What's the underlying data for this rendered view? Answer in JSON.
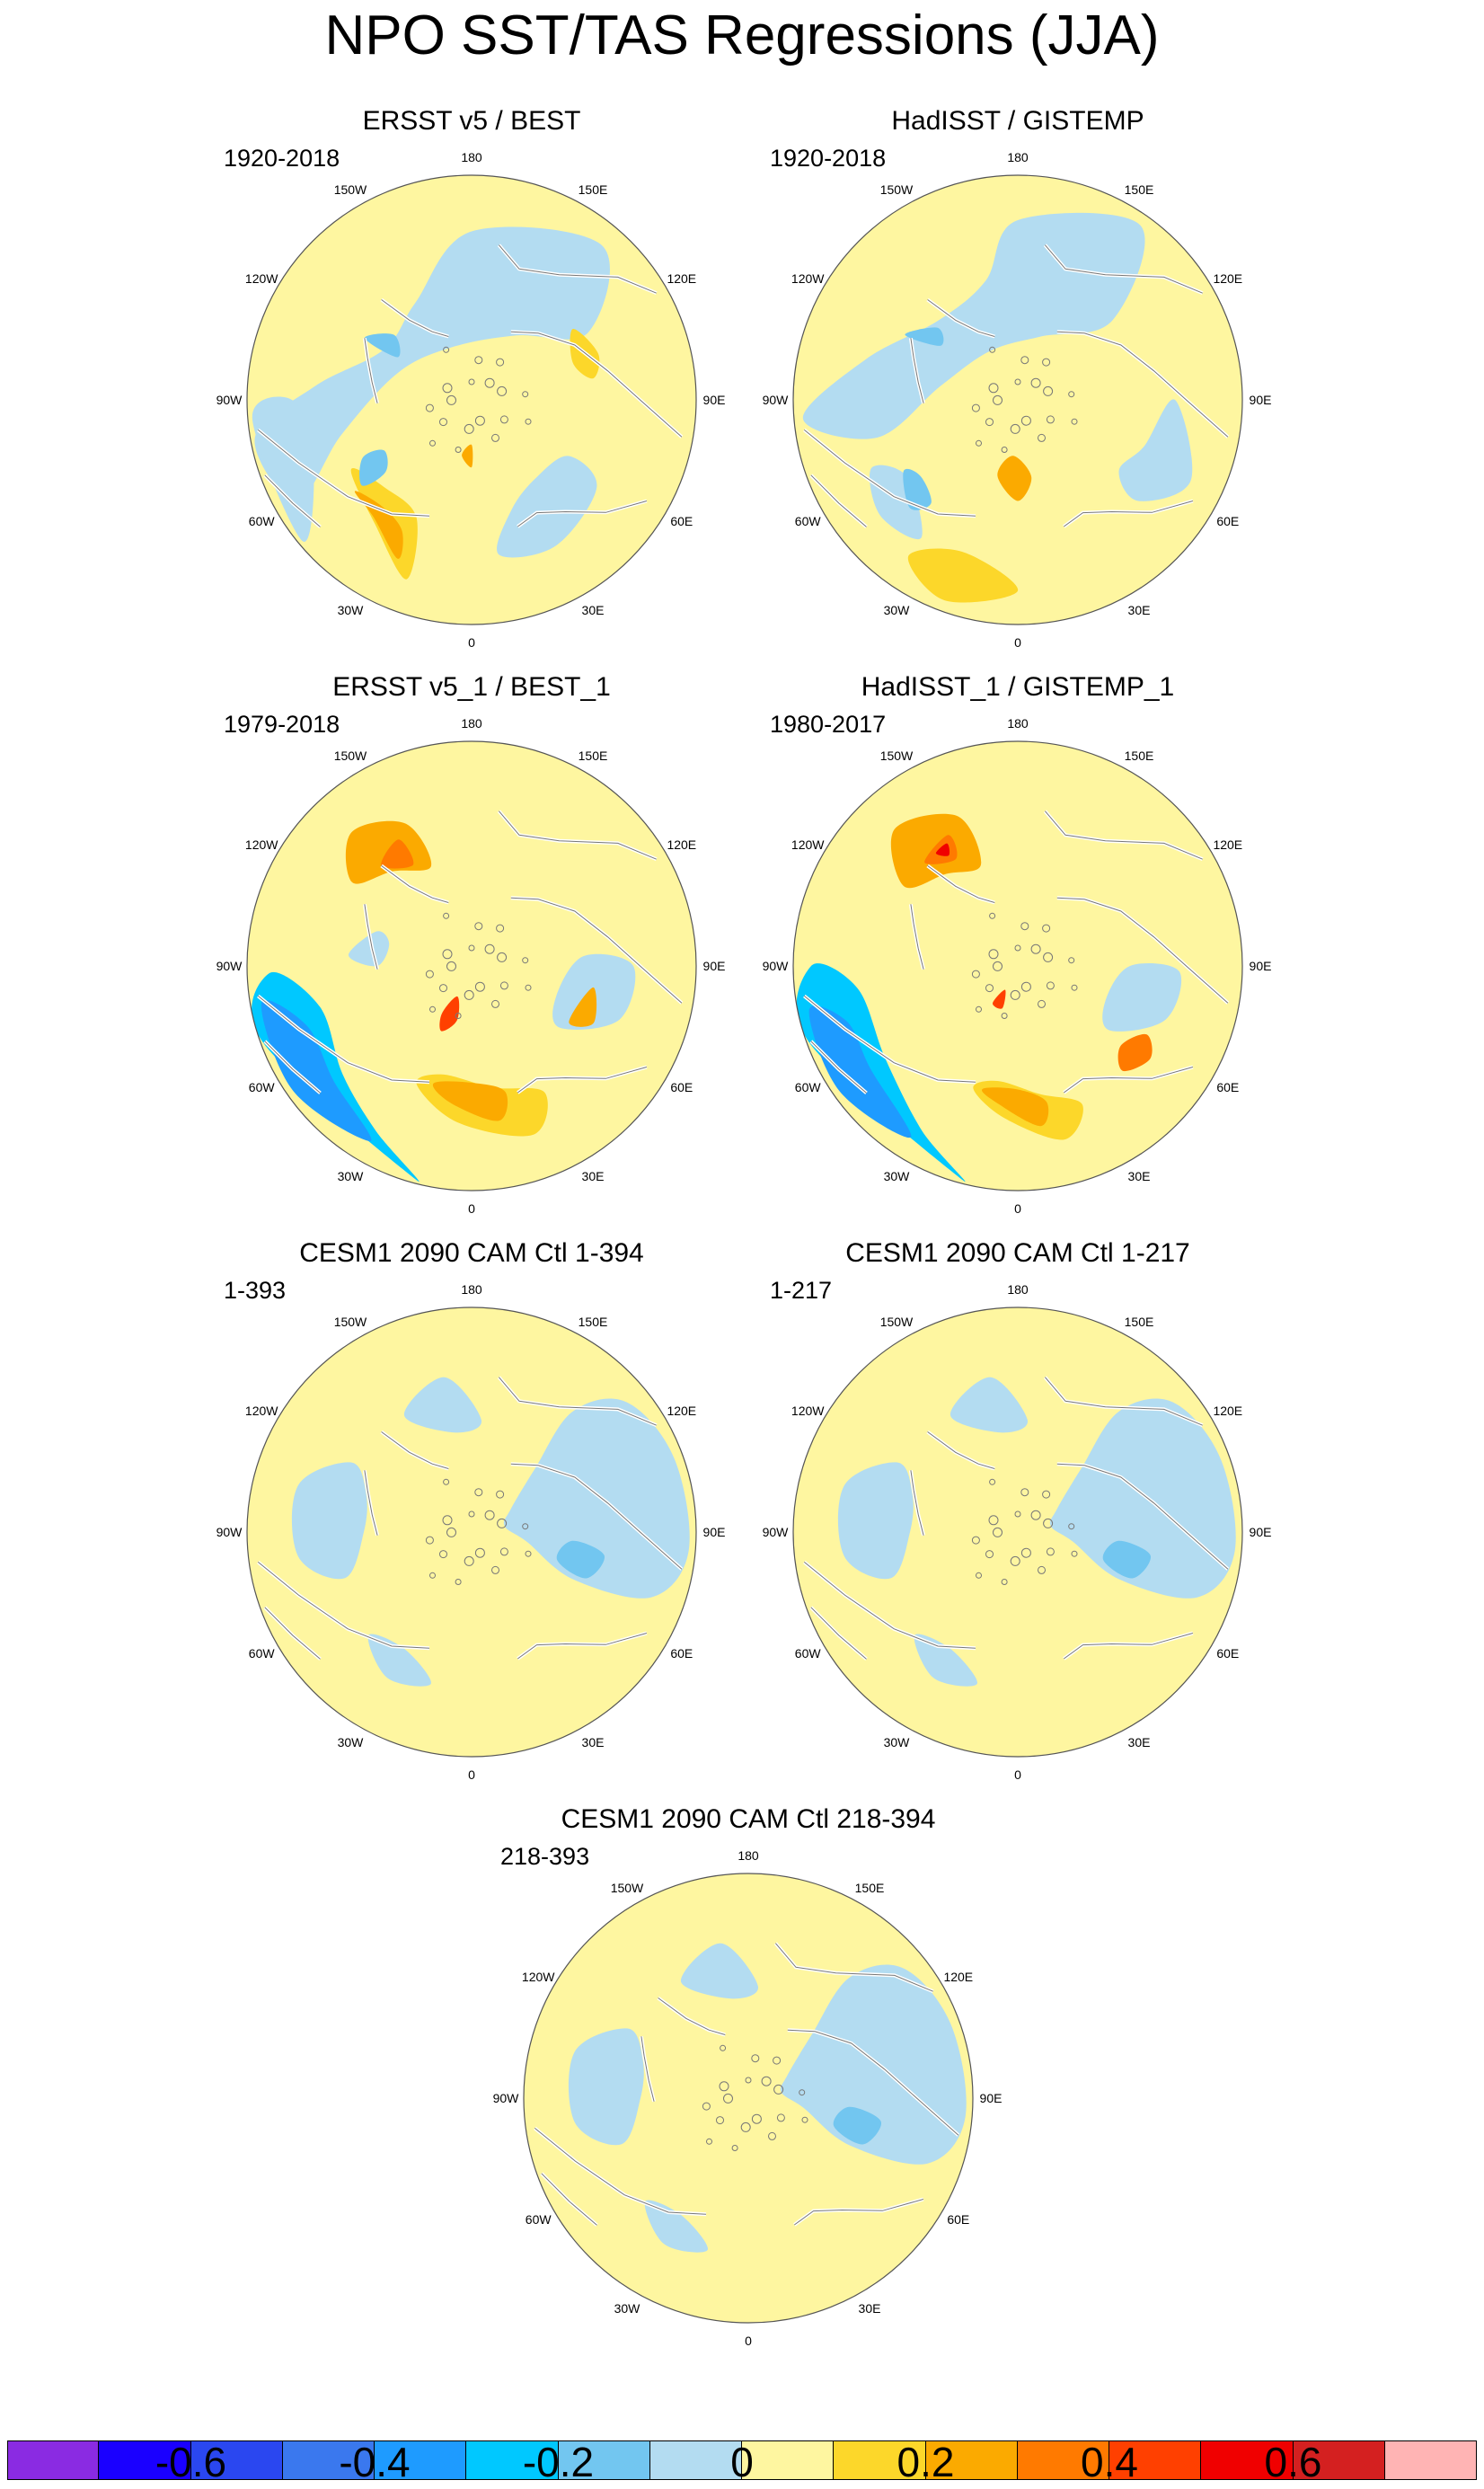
{
  "title": "NPO SST/TAS Regressions (JJA)",
  "panels": [
    {
      "title": "ERSST v5 / BEST",
      "period": "1920-2018",
      "style": "obs20"
    },
    {
      "title": "HadISST / GISTEMP",
      "period": "1920-2018",
      "style": "obs20b"
    },
    {
      "title": "ERSST v5_1 / BEST_1",
      "period": "1979-2018",
      "style": "obs79"
    },
    {
      "title": "HadISST_1 / GISTEMP_1",
      "period": "1980-2017",
      "style": "obs80"
    },
    {
      "title": "CESM1 2090 CAM Ctl 1-394",
      "period": "1-393",
      "style": "model"
    },
    {
      "title": "CESM1 2090 CAM Ctl 1-217",
      "period": "1-217",
      "style": "model"
    },
    {
      "title": "CESM1 2090 CAM Ctl 218-394",
      "period": "218-393",
      "style": "model"
    }
  ],
  "longitude_labels": [
    "180",
    "150E",
    "120E",
    "90E",
    "60E",
    "30E",
    "0",
    "30W",
    "60W",
    "90W",
    "120W",
    "150W"
  ],
  "colorbar": {
    "colors": [
      "#8a2be2",
      "#1a00ff",
      "#2a47f0",
      "#3a78ee",
      "#1e9bff",
      "#00c8ff",
      "#72c6f0",
      "#b3dcf1",
      "#fef6a0",
      "#fcd72a",
      "#fbaa00",
      "#ff7a00",
      "#ff4000",
      "#f00000",
      "#d42020",
      "#ffb4b4"
    ],
    "tick_labels": [
      "-0.6",
      "-0.4",
      "-0.2",
      "0",
      "0.2",
      "0.4",
      "0.6"
    ],
    "tick_values": [
      -0.6,
      -0.4,
      -0.2,
      0,
      0.2,
      0.4,
      0.6
    ]
  }
}
